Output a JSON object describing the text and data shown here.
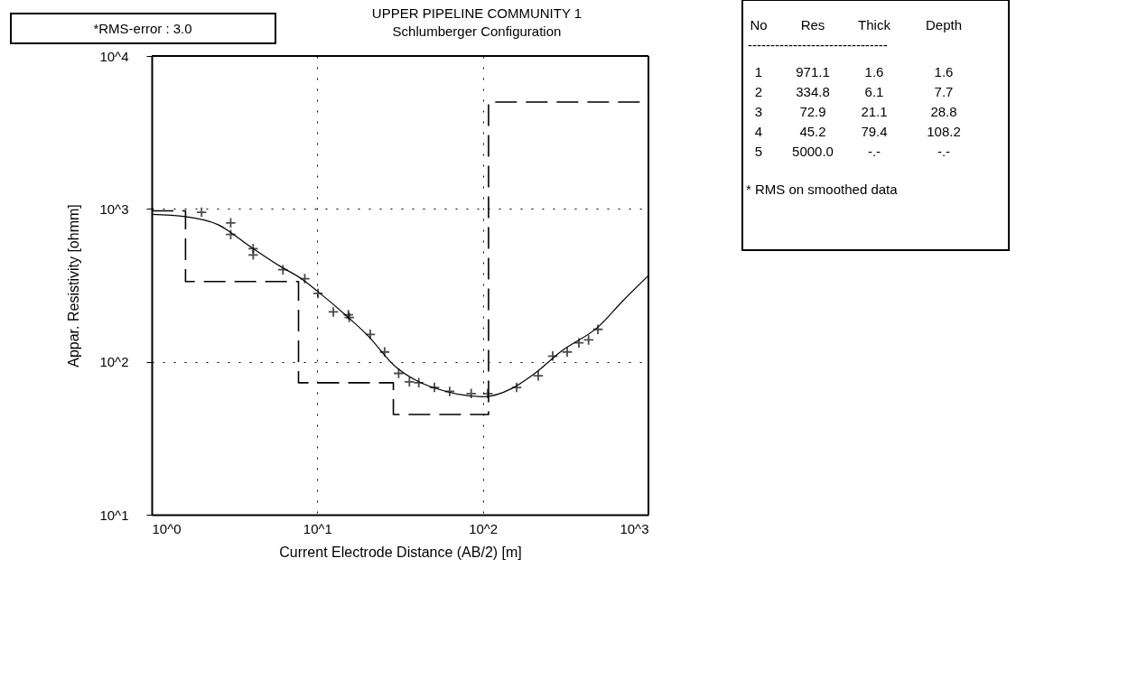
{
  "chart_data": {
    "type": "scatter",
    "title": "UPPER PIPELINE COMMUNITY 1",
    "subtitle": "Schlumberger Configuration",
    "xlabel": "Current Electrode Distance (AB/2) [m]",
    "ylabel": "Appar. Resistivity [ohmm]",
    "log": "xy",
    "grid": true,
    "xlim": [
      1,
      1000
    ],
    "xticks": [
      {
        "value": 1,
        "label": "10^0"
      },
      {
        "value": 10,
        "label": "10^1"
      },
      {
        "value": 100,
        "label": "10^2"
      },
      {
        "value": 1000,
        "label": "10^3"
      }
    ],
    "ylim": [
      10,
      10000
    ],
    "yticks": [
      {
        "value": 10,
        "label": "10^1"
      },
      {
        "value": 100,
        "label": "10^2"
      },
      {
        "value": 1000,
        "label": "10^3"
      },
      {
        "value": 10000,
        "label": "10^4"
      }
    ],
    "series": [
      {
        "color": "#000000",
        "marker": "cross",
        "x": [
          2.0,
          3.0,
          3.0,
          4.1,
          4.1,
          6.2,
          8.4,
          10.1,
          12.5,
          15.4,
          15.6,
          20.9,
          25.5,
          31,
          36,
          41,
          51,
          63,
          85,
          107,
          160,
          216,
          264,
          323,
          380,
          435,
          495
        ],
        "values": [
          950,
          810,
          680,
          550,
          500,
          400,
          350,
          280,
          212,
          203,
          195,
          151,
          116,
          84,
          74,
          73,
          68,
          64,
          62,
          62,
          68,
          81,
          109,
          116,
          133,
          139,
          163
        ]
      },
      {
        "type": "line",
        "color": "#000000",
        "marker": "none",
        "line_style": "solid",
        "x": [
          1,
          1.6,
          2.5,
          4,
          6,
          8,
          10,
          15,
          20,
          30,
          40,
          60,
          100,
          150,
          200,
          300,
          500,
          700,
          1000
        ],
        "values": [
          920,
          890,
          790,
          560,
          420,
          350,
          290,
          200,
          150,
          92,
          75,
          64,
          59,
          67,
          82,
          118,
          170,
          250,
          366
        ]
      },
      {
        "type": "step",
        "color": "#000000",
        "marker": "none",
        "line_style": "dashed",
        "x": [
          1,
          1.6,
          7.7,
          28.8,
          108.2,
          1000
        ],
        "values": [
          971.1,
          334.8,
          72.9,
          45.2,
          5000,
          5000
        ]
      }
    ],
    "annotations": [
      "*RMS-error :  3.0",
      "No    Res  Thick  Depth",
      "-------------------------------",
      " 1   971.1    1.6     1.6",
      " 2   334.8    6.1     7.7",
      " 3    72.9   21.1    28.8",
      " 4    45.2   79.4   108.2",
      " 5  5000.0     -.-      -.-",
      "* RMS on smoothed data"
    ]
  }
}
